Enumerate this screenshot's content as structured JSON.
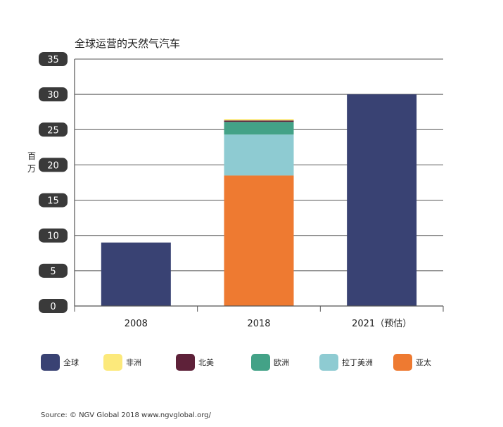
{
  "chart_data": {
    "type": "bar",
    "stacked": true,
    "title": "全球运营的天然气汽车",
    "ylabel": "百万",
    "xlabel": "",
    "ylim": [
      0,
      35
    ],
    "yticks": [
      0,
      5,
      10,
      15,
      20,
      25,
      30,
      35
    ],
    "categories": [
      "2008",
      "2018",
      "2021（预估）"
    ],
    "series": [
      {
        "name": "全球",
        "color": "#394273",
        "values": [
          9.0,
          0,
          30.0
        ]
      },
      {
        "name": "亚太",
        "color": "#ee7a31",
        "values": [
          0,
          18.5,
          0
        ]
      },
      {
        "name": "拉丁美洲",
        "color": "#8ecbd2",
        "values": [
          0,
          5.8,
          0
        ]
      },
      {
        "name": "欧洲",
        "color": "#43a287",
        "values": [
          0,
          1.8,
          0
        ]
      },
      {
        "name": "北美",
        "color": "#5e2139",
        "values": [
          0,
          0.2,
          0
        ]
      },
      {
        "name": "非洲",
        "color": "#fce97b",
        "values": [
          0,
          0.2,
          0
        ]
      }
    ],
    "legend_order": [
      "全球",
      "非洲",
      "北美",
      "欧洲",
      "拉丁美洲",
      "亚太"
    ],
    "grid": true,
    "legend_position": "bottom"
  },
  "source": "Source: © NGV Global 2018 www.ngvglobal.org/"
}
